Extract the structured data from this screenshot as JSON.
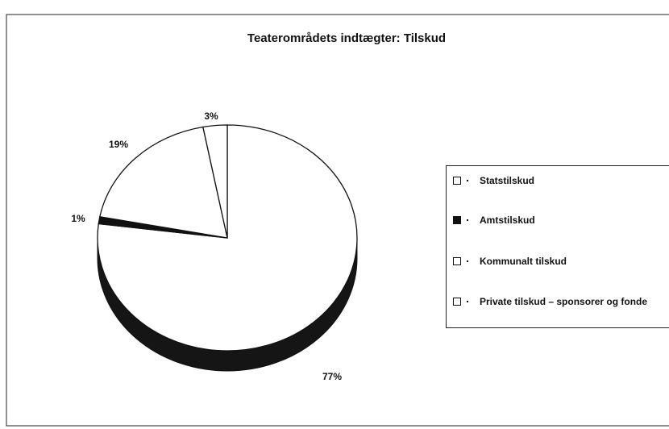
{
  "chart_data": {
    "type": "pie",
    "title": "Teaterområdets indtægter: Tilskud",
    "categories": [
      "Statstilskud",
      "Amtstilskud",
      "Kommunalt tilskud",
      "Private tilskud – sponsorer og fonde"
    ],
    "values": [
      77,
      1,
      19,
      3
    ],
    "value_labels": [
      "77%",
      "1%",
      "19%",
      "3%"
    ],
    "colors": [
      "#ffffff",
      "#111111",
      "#ffffff",
      "#ffffff"
    ],
    "legend": "right"
  }
}
